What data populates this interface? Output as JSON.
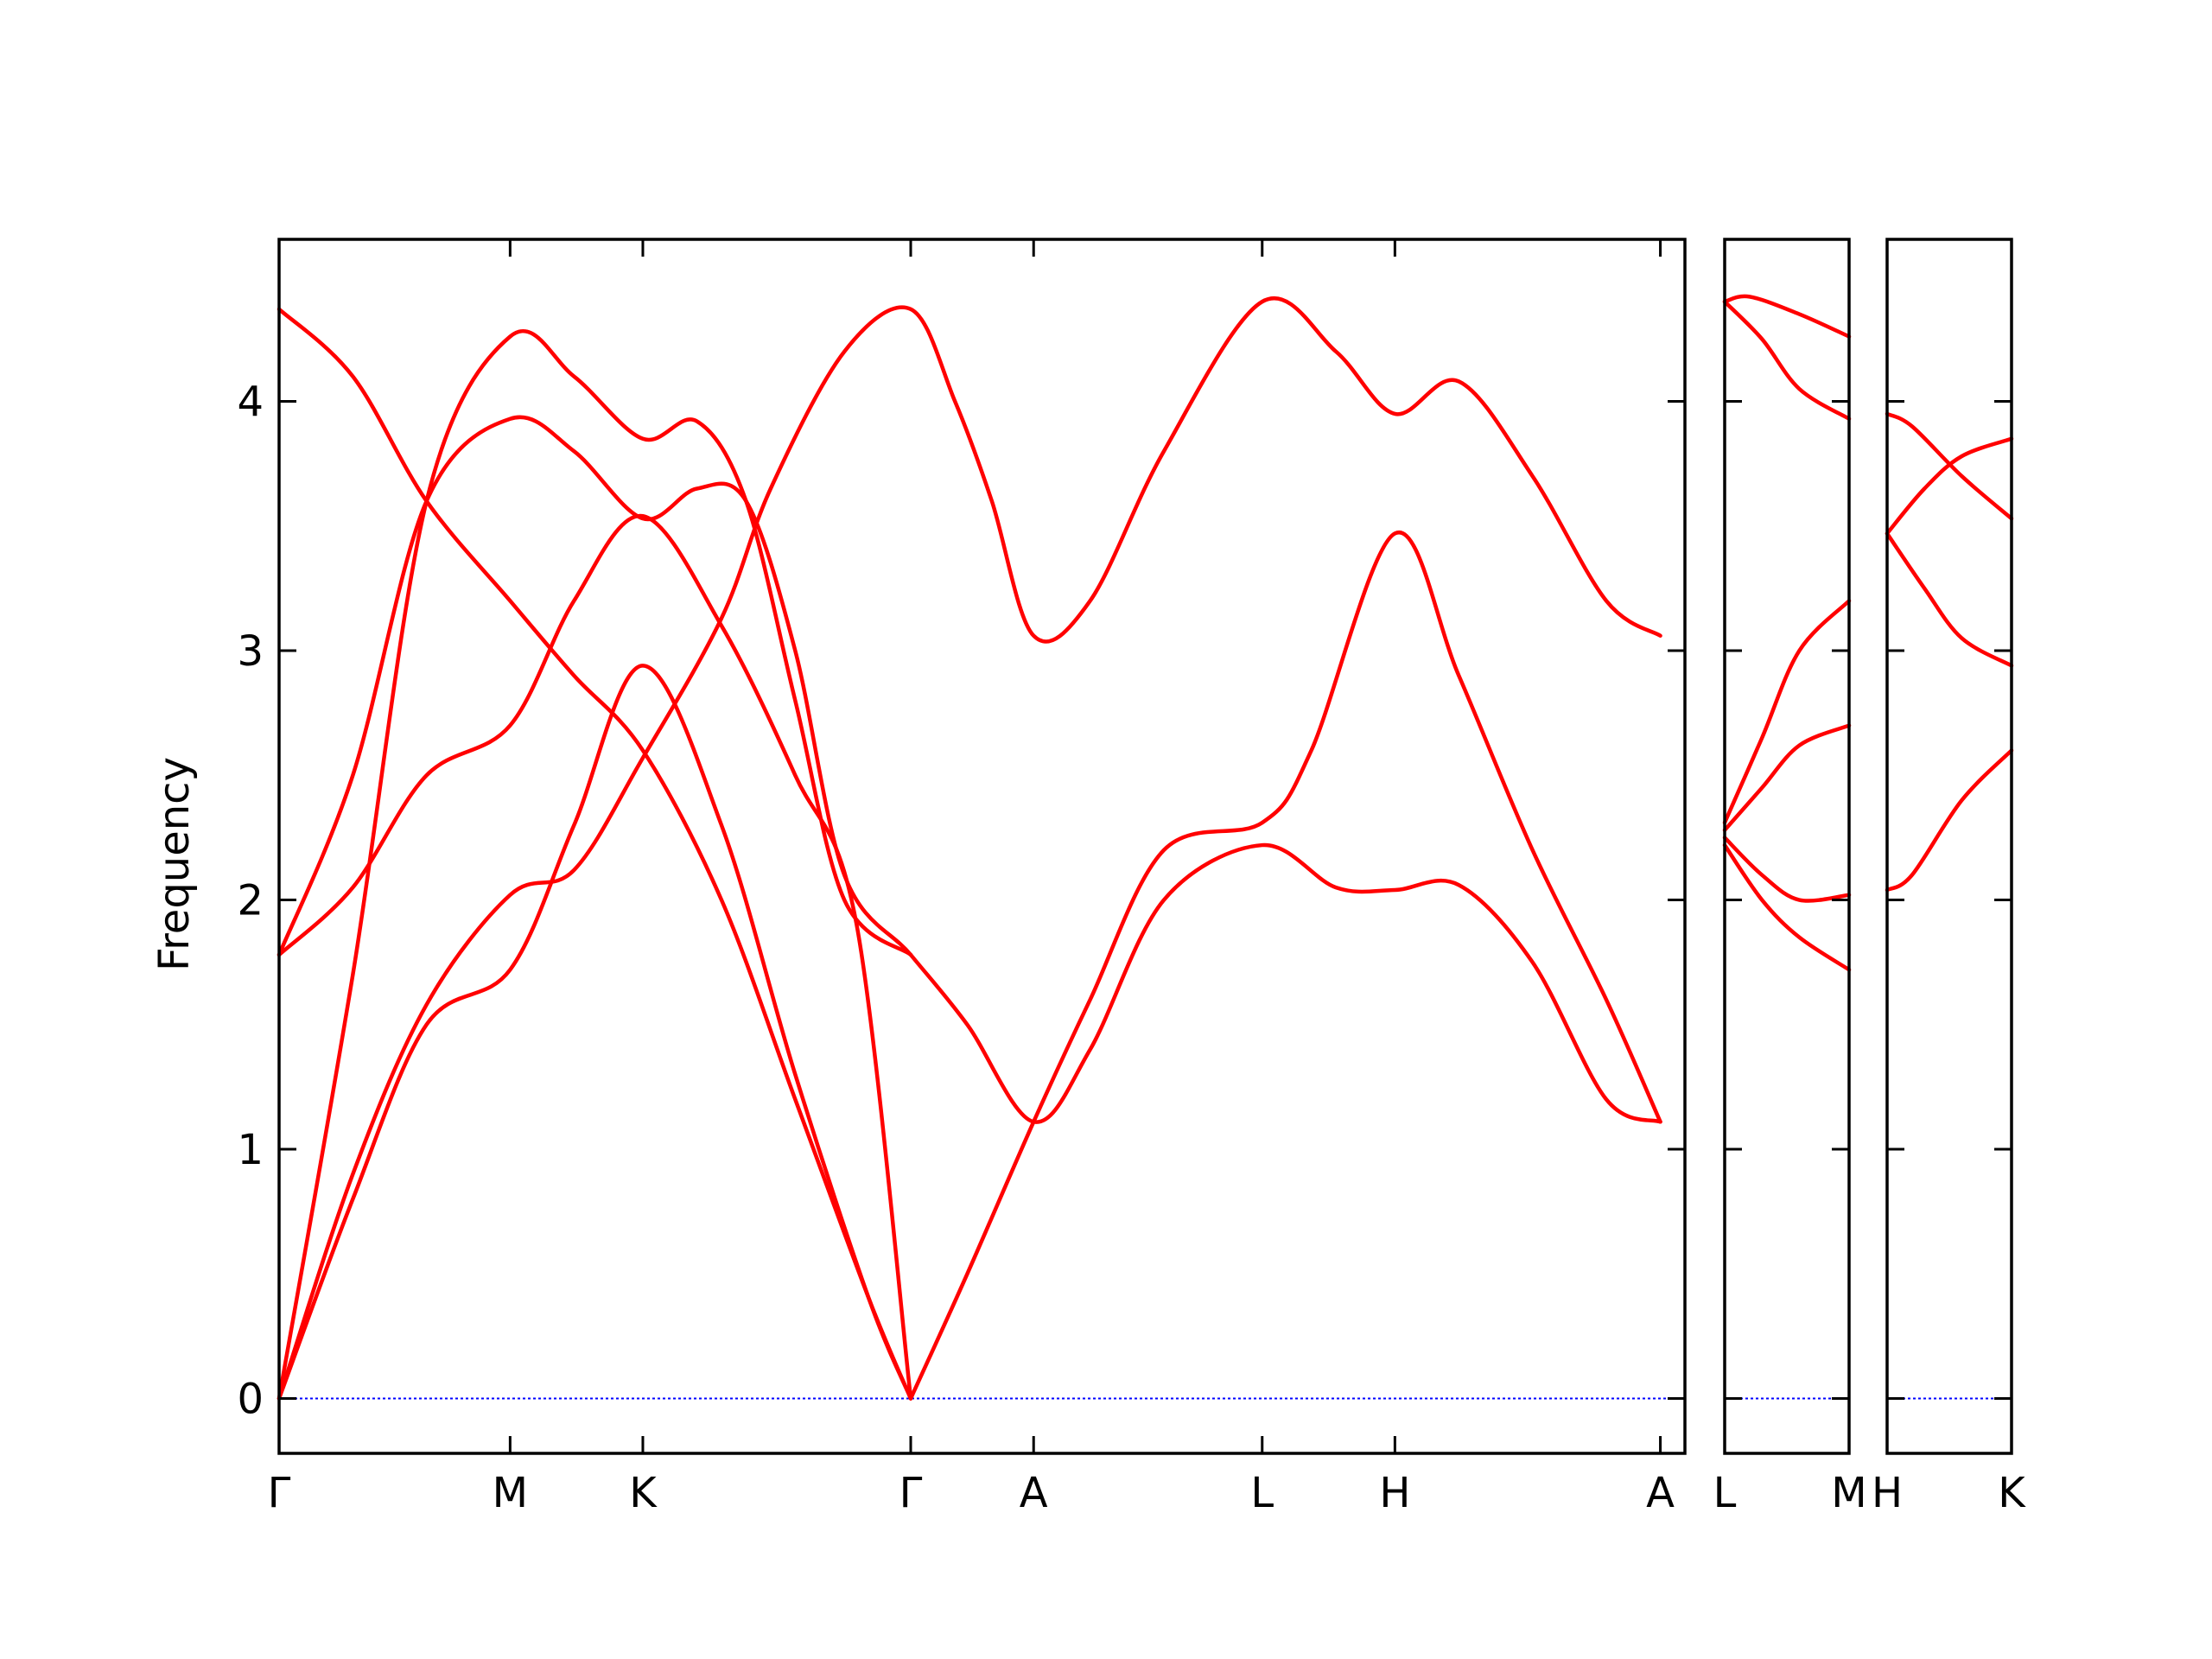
{
  "chart_data": {
    "type": "line",
    "ylabel": "Frequency",
    "ylim": [
      -0.22,
      4.65
    ],
    "yticks": [
      "0",
      "1",
      "2",
      "3",
      "4"
    ],
    "grid": false,
    "legend": "none",
    "colors": {
      "bands": "#ff0000",
      "zero_line": "#0000ff",
      "axes": "#000000"
    },
    "panels": [
      {
        "x_range": [
          0,
          5.72
        ],
        "xticks": [
          {
            "x": 0,
            "label": "Γ"
          },
          {
            "x": 0.94,
            "label": "M"
          },
          {
            "x": 1.48,
            "label": "K"
          },
          {
            "x": 2.57,
            "label": "Γ"
          },
          {
            "x": 3.07,
            "label": "A"
          },
          {
            "x": 4.0,
            "label": "L"
          },
          {
            "x": 4.54,
            "label": "H"
          },
          {
            "x": 5.62,
            "label": "A"
          }
        ],
        "series": [
          {
            "points": [
              [
                0,
                0
              ],
              [
                0.3,
                0.9
              ],
              [
                0.6,
                1.58
              ],
              [
                0.94,
                2.02
              ],
              [
                1.2,
                2.12
              ],
              [
                1.48,
                2.57
              ],
              [
                1.8,
                3.13
              ],
              [
                2.0,
                3.65
              ],
              [
                2.3,
                4.2
              ],
              [
                2.57,
                4.37
              ],
              [
                2.75,
                4.0
              ],
              [
                2.9,
                3.6
              ],
              [
                3.07,
                3.06
              ],
              [
                3.3,
                3.2
              ],
              [
                3.6,
                3.8
              ],
              [
                4.0,
                4.4
              ],
              [
                4.3,
                4.2
              ],
              [
                4.54,
                3.95
              ],
              [
                4.8,
                4.08
              ],
              [
                5.1,
                3.7
              ],
              [
                5.4,
                3.2
              ],
              [
                5.62,
                3.06
              ]
            ]
          },
          {
            "points": [
              [
                0,
                4.37
              ],
              [
                0.3,
                4.1
              ],
              [
                0.6,
                3.6
              ],
              [
                0.94,
                3.2
              ],
              [
                1.2,
                2.9
              ],
              [
                1.48,
                2.6
              ],
              [
                1.8,
                2.0
              ],
              [
                2.1,
                1.2
              ],
              [
                2.4,
                0.4
              ],
              [
                2.57,
                0
              ]
            ]
          },
          {
            "points": [
              [
                0,
                1.78
              ],
              [
                0.3,
                2.05
              ],
              [
                0.6,
                2.5
              ],
              [
                0.94,
                2.7
              ],
              [
                1.2,
                3.2
              ],
              [
                1.48,
                3.54
              ],
              [
                1.8,
                3.1
              ],
              [
                2.1,
                2.5
              ],
              [
                2.35,
                1.9
              ],
              [
                2.57,
                0
              ]
            ]
          },
          {
            "points": [
              [
                0,
                1.78
              ],
              [
                0.3,
                2.5
              ],
              [
                0.6,
                3.6
              ],
              [
                0.94,
                3.93
              ],
              [
                1.2,
                3.8
              ],
              [
                1.48,
                3.53
              ],
              [
                1.7,
                3.65
              ],
              [
                1.9,
                3.6
              ],
              [
                2.1,
                3.0
              ],
              [
                2.3,
                2.1
              ],
              [
                2.57,
                1.78
              ],
              [
                2.8,
                1.5
              ],
              [
                3.07,
                1.11
              ],
              [
                3.3,
                1.4
              ],
              [
                3.6,
                2.0
              ],
              [
                4.0,
                2.22
              ],
              [
                4.3,
                2.05
              ],
              [
                4.54,
                2.04
              ],
              [
                4.8,
                2.06
              ],
              [
                5.1,
                1.75
              ],
              [
                5.4,
                1.2
              ],
              [
                5.62,
                1.11
              ]
            ]
          },
          {
            "points": [
              [
                0,
                0
              ],
              [
                0.3,
                1.7
              ],
              [
                0.6,
                3.6
              ],
              [
                0.94,
                4.26
              ],
              [
                1.2,
                4.1
              ],
              [
                1.48,
                3.85
              ],
              [
                1.7,
                3.92
              ],
              [
                1.9,
                3.6
              ],
              [
                2.1,
                2.8
              ],
              [
                2.3,
                2.0
              ],
              [
                2.57,
                1.78
              ]
            ]
          },
          {
            "points": [
              [
                0,
                0
              ],
              [
                0.3,
                0.8
              ],
              [
                0.6,
                1.5
              ],
              [
                0.94,
                1.72
              ],
              [
                1.2,
                2.3
              ],
              [
                1.48,
                2.94
              ],
              [
                1.8,
                2.3
              ],
              [
                2.1,
                1.3
              ],
              [
                2.4,
                0.4
              ],
              [
                2.57,
                0
              ]
            ]
          },
          {
            "points": [
              [
                2.57,
                0
              ],
              [
                2.8,
                0.5
              ],
              [
                3.07,
                1.11
              ],
              [
                3.3,
                1.6
              ],
              [
                3.6,
                2.2
              ],
              [
                4.0,
                2.31
              ],
              [
                4.2,
                2.6
              ],
              [
                4.54,
                3.47
              ],
              [
                4.8,
                2.9
              ],
              [
                5.1,
                2.2
              ],
              [
                5.4,
                1.6
              ],
              [
                5.62,
                1.11
              ]
            ]
          }
        ]
      },
      {
        "x_range": [
          0,
          0.5
        ],
        "xticks": [
          {
            "x": 0,
            "label": "L"
          },
          {
            "x": 0.5,
            "label": "M"
          }
        ],
        "series": [
          {
            "points": [
              [
                0,
                4.4
              ],
              [
                0.1,
                4.42
              ],
              [
                0.3,
                4.35
              ],
              [
                0.5,
                4.26
              ]
            ]
          },
          {
            "points": [
              [
                0,
                4.4
              ],
              [
                0.15,
                4.25
              ],
              [
                0.3,
                4.05
              ],
              [
                0.5,
                3.93
              ]
            ]
          },
          {
            "points": [
              [
                0,
                2.31
              ],
              [
                0.15,
                2.65
              ],
              [
                0.3,
                3.0
              ],
              [
                0.5,
                3.2
              ]
            ]
          },
          {
            "points": [
              [
                0,
                2.28
              ],
              [
                0.15,
                2.45
              ],
              [
                0.3,
                2.62
              ],
              [
                0.5,
                2.7
              ]
            ]
          },
          {
            "points": [
              [
                0,
                2.25
              ],
              [
                0.15,
                2.1
              ],
              [
                0.3,
                2.0
              ],
              [
                0.5,
                2.02
              ]
            ]
          },
          {
            "points": [
              [
                0,
                2.22
              ],
              [
                0.15,
                2.0
              ],
              [
                0.3,
                1.85
              ],
              [
                0.5,
                1.72
              ]
            ]
          }
        ]
      },
      {
        "x_range": [
          0,
          0.5
        ],
        "xticks": [
          {
            "x": 0,
            "label": "H"
          },
          {
            "x": 0.5,
            "label": "K"
          }
        ],
        "series": [
          {
            "points": [
              [
                0,
                3.95
              ],
              [
                0.1,
                3.9
              ],
              [
                0.3,
                3.7
              ],
              [
                0.5,
                3.53
              ]
            ]
          },
          {
            "points": [
              [
                0,
                3.47
              ],
              [
                0.15,
                3.65
              ],
              [
                0.3,
                3.78
              ],
              [
                0.5,
                3.85
              ]
            ]
          },
          {
            "points": [
              [
                0,
                3.47
              ],
              [
                0.15,
                3.25
              ],
              [
                0.3,
                3.05
              ],
              [
                0.5,
                2.94
              ]
            ]
          },
          {
            "points": [
              [
                0,
                2.04
              ],
              [
                0.1,
                2.1
              ],
              [
                0.3,
                2.4
              ],
              [
                0.5,
                2.6
              ]
            ]
          }
        ]
      }
    ]
  }
}
